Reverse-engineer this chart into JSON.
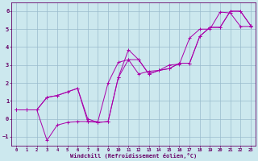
{
  "xlabel": "Windchill (Refroidissement éolien,°C)",
  "bg_color": "#cce8ee",
  "line_color": "#aa00aa",
  "grid_color": "#99bbcc",
  "xlim": [
    -0.5,
    23.5
  ],
  "ylim": [
    -1.5,
    6.5
  ],
  "xticks": [
    0,
    1,
    2,
    3,
    4,
    5,
    6,
    7,
    8,
    9,
    10,
    11,
    12,
    13,
    14,
    15,
    16,
    17,
    18,
    19,
    20,
    21,
    22,
    23
  ],
  "yticks": [
    -1,
    0,
    1,
    2,
    3,
    4,
    5,
    6
  ],
  "line1_x": [
    0,
    1,
    2,
    3,
    4,
    5,
    6,
    7,
    8,
    9,
    10,
    11,
    12,
    13,
    14,
    15,
    16,
    17,
    18,
    19,
    20,
    21,
    22,
    23
  ],
  "line1_y": [
    0.5,
    0.5,
    0.5,
    1.2,
    1.3,
    1.5,
    1.7,
    0.0,
    -0.2,
    -0.15,
    2.3,
    3.3,
    3.3,
    2.5,
    2.7,
    2.8,
    3.1,
    3.1,
    4.6,
    5.1,
    5.1,
    6.0,
    6.0,
    5.2
  ],
  "line2_x": [
    0,
    1,
    2,
    3,
    4,
    5,
    6,
    7,
    8,
    9,
    10,
    11,
    12,
    13,
    14,
    15,
    16,
    17,
    18,
    19,
    20,
    21,
    22,
    23
  ],
  "line2_y": [
    0.5,
    0.5,
    0.5,
    1.2,
    1.3,
    1.5,
    1.7,
    -0.15,
    -0.2,
    -0.15,
    2.3,
    3.85,
    3.3,
    2.5,
    2.7,
    2.8,
    3.1,
    3.1,
    4.6,
    5.1,
    5.1,
    6.0,
    6.0,
    5.2
  ],
  "line3_x": [
    0,
    1,
    2,
    3,
    4,
    5,
    6,
    7,
    8,
    9,
    10,
    11,
    12,
    13,
    14,
    15,
    16,
    17,
    18,
    19,
    20,
    21,
    22,
    23
  ],
  "line3_y": [
    0.5,
    0.5,
    0.5,
    -1.2,
    -0.35,
    -0.2,
    -0.15,
    -0.15,
    -0.15,
    2.0,
    3.15,
    3.3,
    2.5,
    2.65,
    2.7,
    3.0,
    3.05,
    4.5,
    5.0,
    5.0,
    5.95,
    5.9,
    5.15,
    5.15
  ]
}
